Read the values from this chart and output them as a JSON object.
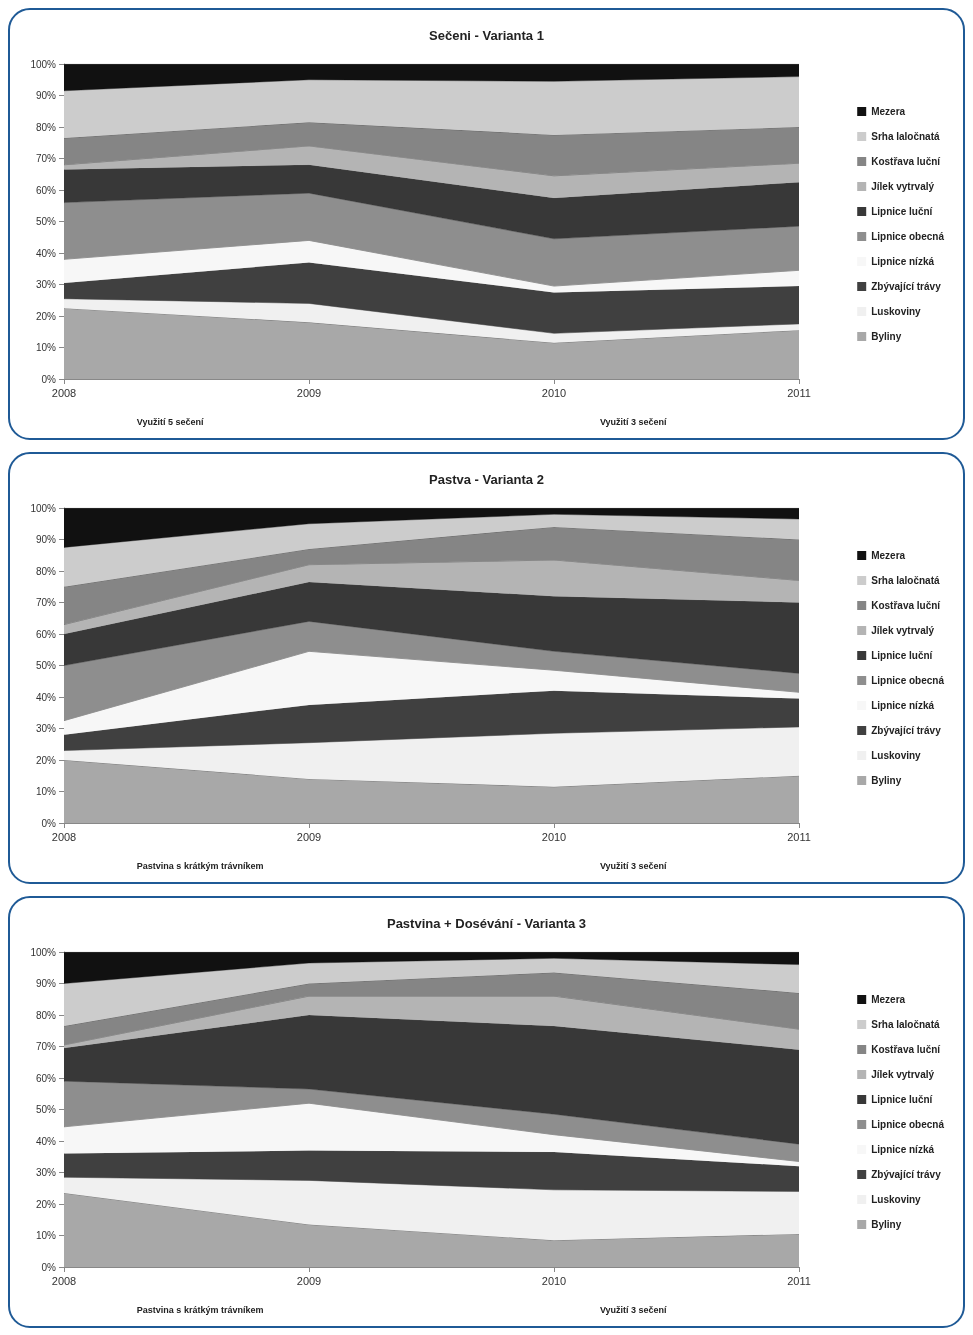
{
  "chart_data": [
    {
      "type": "area",
      "title": "Sečeni - Varianta 1",
      "stacked": true,
      "marker": "none",
      "grid": false,
      "legend": "right",
      "categories": [
        "2008",
        "2009",
        "2010",
        "2011"
      ],
      "ylim": [
        0,
        100
      ],
      "yticks": [
        {
          "value": 0,
          "label": "0%"
        },
        {
          "value": 10,
          "label": "10%"
        },
        {
          "value": 20,
          "label": "20%"
        },
        {
          "value": 30,
          "label": "30%"
        },
        {
          "value": 40,
          "label": "40%"
        },
        {
          "value": 50,
          "label": "50%"
        },
        {
          "value": 60,
          "label": "60%"
        },
        {
          "value": 70,
          "label": "70%"
        },
        {
          "value": 80,
          "label": "80%"
        },
        {
          "value": 90,
          "label": "90%"
        },
        {
          "value": 100,
          "label": "100%"
        }
      ],
      "annotations": [
        "Využití 5 sečení",
        "Využití 3 sečení"
      ],
      "series": [
        {
          "name": "Byliny",
          "color": "#a8a8a8",
          "values": [
            22.5,
            18,
            11.5,
            15.5
          ]
        },
        {
          "name": "Luskoviny",
          "color": "#f0f0f0",
          "values": [
            3,
            6,
            3,
            2
          ]
        },
        {
          "name": "Zbývající trávy",
          "color": "#404040",
          "values": [
            5,
            13,
            13,
            12
          ]
        },
        {
          "name": "Lipnice nízká",
          "color": "#f7f7f7",
          "values": [
            7.5,
            7,
            2,
            5
          ]
        },
        {
          "name": "Lipnice obecná",
          "color": "#8e8e8e",
          "values": [
            18,
            15,
            15,
            14
          ]
        },
        {
          "name": "Lipnice luční",
          "color": "#383838",
          "values": [
            10.5,
            9,
            13,
            14
          ]
        },
        {
          "name": "Jílek vytrvalý",
          "color": "#b4b4b4",
          "values": [
            1.5,
            6,
            7,
            6
          ]
        },
        {
          "name": "Kostřava luční",
          "color": "#858585",
          "values": [
            8.5,
            7.5,
            13,
            11.5
          ]
        },
        {
          "name": "Srha laločnatá",
          "color": "#cccccc",
          "values": [
            15,
            13.5,
            17,
            16
          ]
        },
        {
          "name": "Mezera",
          "color": "#111111",
          "values": [
            8.5,
            5,
            5.5,
            4
          ]
        }
      ]
    },
    {
      "type": "area",
      "title": "Pastva - Varianta 2",
      "stacked": true,
      "marker": "none",
      "grid": false,
      "legend": "right",
      "categories": [
        "2008",
        "2009",
        "2010",
        "2011"
      ],
      "ylim": [
        0,
        100
      ],
      "yticks": [
        {
          "value": 0,
          "label": "0%"
        },
        {
          "value": 10,
          "label": "10%"
        },
        {
          "value": 20,
          "label": "20%"
        },
        {
          "value": 30,
          "label": "30%"
        },
        {
          "value": 40,
          "label": "40%"
        },
        {
          "value": 50,
          "label": "50%"
        },
        {
          "value": 60,
          "label": "60%"
        },
        {
          "value": 70,
          "label": "70%"
        },
        {
          "value": 80,
          "label": "80%"
        },
        {
          "value": 90,
          "label": "90%"
        },
        {
          "value": 100,
          "label": "100%"
        }
      ],
      "annotations": [
        "Pastvina s krátkým trávníkem",
        "Využití 3 sečení"
      ],
      "series": [
        {
          "name": "Byliny",
          "color": "#a8a8a8",
          "values": [
            20,
            14,
            11.5,
            15
          ]
        },
        {
          "name": "Luskoviny",
          "color": "#f0f0f0",
          "values": [
            3,
            11.5,
            17,
            15.5
          ]
        },
        {
          "name": "Zbývající trávy",
          "color": "#404040",
          "values": [
            5,
            12,
            13.5,
            9
          ]
        },
        {
          "name": "Lipnice nízká",
          "color": "#f7f7f7",
          "values": [
            4.5,
            17,
            6.5,
            2
          ]
        },
        {
          "name": "Lipnice obecná",
          "color": "#8e8e8e",
          "values": [
            17.5,
            9.5,
            6,
            6
          ]
        },
        {
          "name": "Lipnice luční",
          "color": "#383838",
          "values": [
            10,
            12.5,
            17.5,
            22.5
          ]
        },
        {
          "name": "Jílek vytrvalý",
          "color": "#b4b4b4",
          "values": [
            3,
            5.5,
            11.5,
            7
          ]
        },
        {
          "name": "Kostřava luční",
          "color": "#858585",
          "values": [
            12,
            5,
            10.5,
            13
          ]
        },
        {
          "name": "Srha laločnatá",
          "color": "#cccccc",
          "values": [
            12.5,
            8,
            4,
            6.5
          ]
        },
        {
          "name": "Mezera",
          "color": "#111111",
          "values": [
            12.5,
            5,
            2,
            3.5
          ]
        }
      ]
    },
    {
      "type": "area",
      "title": "Pastvina + Dosévání - Varianta 3",
      "stacked": true,
      "marker": "none",
      "grid": false,
      "legend": "right",
      "categories": [
        "2008",
        "2009",
        "2010",
        "2011"
      ],
      "ylim": [
        0,
        100
      ],
      "yticks": [
        {
          "value": 0,
          "label": "0%"
        },
        {
          "value": 10,
          "label": "10%"
        },
        {
          "value": 20,
          "label": "20%"
        },
        {
          "value": 30,
          "label": "30%"
        },
        {
          "value": 40,
          "label": "40%"
        },
        {
          "value": 50,
          "label": "50%"
        },
        {
          "value": 60,
          "label": "60%"
        },
        {
          "value": 70,
          "label": "70%"
        },
        {
          "value": 80,
          "label": "80%"
        },
        {
          "value": 90,
          "label": "90%"
        },
        {
          "value": 100,
          "label": "100%"
        }
      ],
      "annotations": [
        "Pastvina s krátkým trávníkem",
        "Využití 3 sečení"
      ],
      "series": [
        {
          "name": "Byliny",
          "color": "#a8a8a8",
          "values": [
            23.5,
            13.5,
            8.5,
            10.5
          ]
        },
        {
          "name": "Luskoviny",
          "color": "#f0f0f0",
          "values": [
            5,
            14,
            16,
            13.5
          ]
        },
        {
          "name": "Zbývající trávy",
          "color": "#404040",
          "values": [
            7.5,
            9.5,
            12,
            8
          ]
        },
        {
          "name": "Lipnice nízká",
          "color": "#f7f7f7",
          "values": [
            8.5,
            15,
            5.5,
            1.5
          ]
        },
        {
          "name": "Lipnice obecná",
          "color": "#8e8e8e",
          "values": [
            14.5,
            4.5,
            6.5,
            5.5
          ]
        },
        {
          "name": "Lipnice luční",
          "color": "#383838",
          "values": [
            10.5,
            23.5,
            28,
            30
          ]
        },
        {
          "name": "Jílek vytrvalý",
          "color": "#b4b4b4",
          "values": [
            1,
            6,
            9.5,
            6.5
          ]
        },
        {
          "name": "Kostřava luční",
          "color": "#858585",
          "values": [
            6,
            4,
            7.5,
            11.5
          ]
        },
        {
          "name": "Srha laločnatá",
          "color": "#cccccc",
          "values": [
            13.5,
            6.5,
            4.5,
            9
          ]
        },
        {
          "name": "Mezera",
          "color": "#111111",
          "values": [
            10,
            3.5,
            2,
            4
          ]
        }
      ]
    }
  ]
}
